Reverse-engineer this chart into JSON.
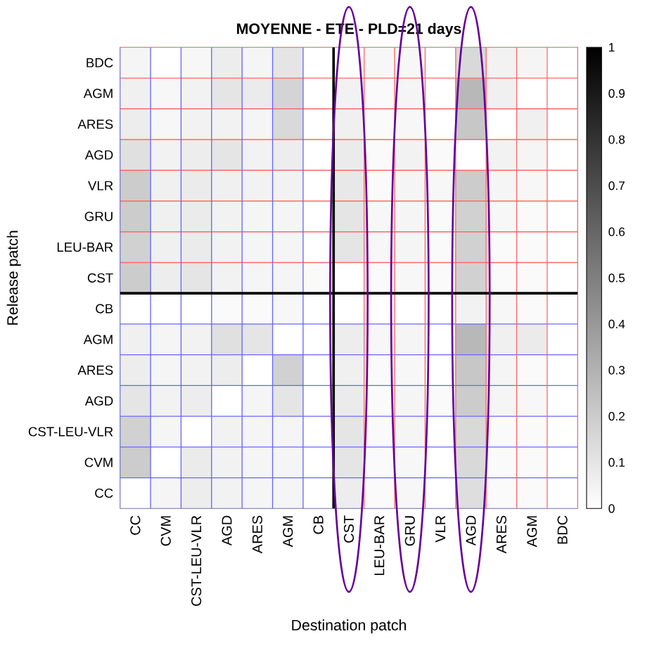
{
  "chart_data": {
    "type": "heatmap",
    "title": "MOYENNE - ETE - PLD=21 days",
    "xlabel": "Destination patch",
    "ylabel": "Release patch",
    "categories": [
      "CC",
      "CVM",
      "CST-LEU-VLR",
      "AGD",
      "ARES",
      "AGM",
      "CB",
      "CST",
      "LEU-BAR",
      "GRU",
      "VLR",
      "AGD",
      "ARES",
      "AGM",
      "BDC"
    ],
    "y_categories": [
      "BDC",
      "AGM",
      "ARES",
      "AGD",
      "VLR",
      "GRU",
      "LEU-BAR",
      "CST",
      "CB",
      "AGM",
      "ARES",
      "AGD",
      "CST-LEU-VLR",
      "CVM",
      "CC"
    ],
    "cells": [
      [
        0.04,
        0,
        0.03,
        0.07,
        0.04,
        0.1,
        0,
        0,
        0.03,
        0.03,
        0,
        0.15,
        0.05,
        0.04,
        0
      ],
      [
        0.06,
        0.03,
        0.05,
        0.1,
        0.08,
        0.17,
        0,
        0.05,
        0.02,
        0.04,
        0,
        0.28,
        0.06,
        0,
        0
      ],
      [
        0.07,
        0.03,
        0.05,
        0.05,
        0.04,
        0.15,
        0,
        0.06,
        0.02,
        0.03,
        0,
        0.22,
        0,
        0.06,
        0
      ],
      [
        0.12,
        0.05,
        0.07,
        0.1,
        0.05,
        0.07,
        0,
        0.08,
        0.02,
        0.05,
        0.02,
        0,
        0.05,
        0.04,
        0
      ],
      [
        0.2,
        0.06,
        0.08,
        0.06,
        0.05,
        0.05,
        0,
        0.09,
        0.02,
        0.04,
        0.03,
        0.2,
        0.04,
        0.03,
        0
      ],
      [
        0.2,
        0.06,
        0.08,
        0.05,
        0.04,
        0.04,
        0,
        0.1,
        0.03,
        0.04,
        0.02,
        0.18,
        0.03,
        0.02,
        0
      ],
      [
        0.18,
        0.06,
        0.08,
        0.05,
        0.04,
        0.04,
        0,
        0.1,
        0.03,
        0.04,
        0.02,
        0.18,
        0.02,
        0.02,
        0
      ],
      [
        0.2,
        0.07,
        0.1,
        0.05,
        0.04,
        0.04,
        0.02,
        0,
        0.02,
        0.03,
        0.02,
        0.18,
        0.02,
        0.02,
        0
      ],
      [
        0,
        0,
        0,
        0.02,
        0.02,
        0.03,
        0,
        0,
        0,
        0,
        0,
        0.05,
        0.03,
        0.02,
        0
      ],
      [
        0.06,
        0.04,
        0.05,
        0.12,
        0.1,
        0,
        0,
        0.07,
        0.03,
        0.04,
        0,
        0.28,
        0.06,
        0.08,
        0
      ],
      [
        0.07,
        0.04,
        0.05,
        0.07,
        0,
        0.18,
        0,
        0.06,
        0.02,
        0.03,
        0,
        0.22,
        0.04,
        0.02,
        0
      ],
      [
        0.1,
        0.05,
        0.07,
        0,
        0.04,
        0.1,
        0,
        0.08,
        0.02,
        0.04,
        0.02,
        0.2,
        0.04,
        0.03,
        0
      ],
      [
        0.18,
        0.04,
        0,
        0.05,
        0.04,
        0.04,
        0,
        0.1,
        0.02,
        0.04,
        0,
        0.15,
        0.02,
        0.02,
        0
      ],
      [
        0.2,
        0,
        0.08,
        0.05,
        0.04,
        0.04,
        0,
        0.1,
        0.02,
        0.03,
        0,
        0.15,
        0.02,
        0.02,
        0
      ],
      [
        0,
        0.04,
        0.07,
        0.05,
        0.04,
        0.04,
        0,
        0.07,
        0.02,
        0.03,
        0,
        0.13,
        0.02,
        0.02,
        0
      ]
    ],
    "clim": [
      0,
      1
    ],
    "cticks": [
      0,
      0.1,
      0.2,
      0.3,
      0.4,
      0.5,
      0.6,
      0.7,
      0.8,
      0.9,
      1
    ]
  }
}
